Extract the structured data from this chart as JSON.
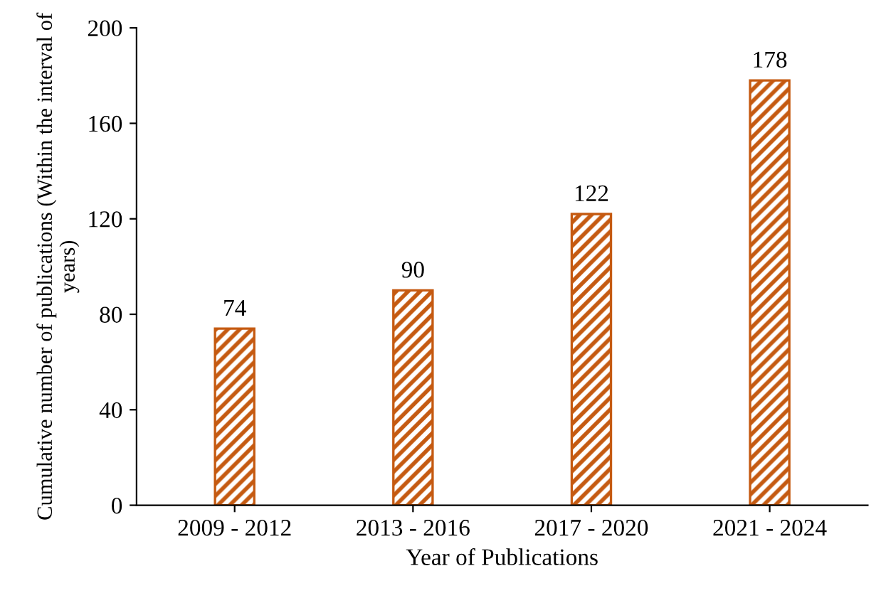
{
  "chart_data": {
    "type": "bar",
    "xlabel": "Year of Publications",
    "ylabel": "Cumulative number of publications (Within the interval of years)",
    "categories": [
      "2009 - 2012",
      "2013 - 2016",
      "2017 - 2020",
      "2021 - 2024"
    ],
    "values": [
      74,
      90,
      122,
      178
    ],
    "color": "#c55a11",
    "ylim": [
      0,
      200
    ],
    "yticks": [
      0,
      40,
      80,
      120,
      160,
      200
    ],
    "grid": false,
    "data_labels": true
  }
}
